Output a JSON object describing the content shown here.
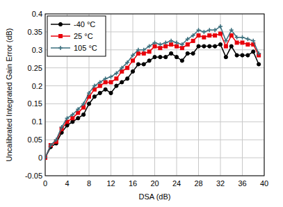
{
  "chart_data": {
    "type": "line",
    "x_label": "DSA (dB)",
    "y_label": "Uncalibrated Integrated Gain Error (dB)",
    "x": [
      0,
      1,
      2,
      3,
      4,
      5,
      6,
      7,
      8,
      9,
      10,
      11,
      12,
      13,
      14,
      15,
      16,
      17,
      18,
      19,
      20,
      21,
      22,
      23,
      24,
      25,
      26,
      27,
      28,
      29,
      30,
      31,
      32,
      33,
      34,
      35,
      36,
      37,
      38,
      39
    ],
    "series": [
      {
        "name": "-40 °C",
        "color": "#000000",
        "marker": "circle",
        "values": [
          0,
          0.03,
          0.04,
          0.07,
          0.09,
          0.1,
          0.11,
          0.12,
          0.15,
          0.17,
          0.18,
          0.19,
          0.18,
          0.2,
          0.21,
          0.22,
          0.24,
          0.26,
          0.26,
          0.27,
          0.28,
          0.28,
          0.28,
          0.29,
          0.28,
          0.27,
          0.29,
          0.29,
          0.31,
          0.31,
          0.31,
          0.31,
          0.315,
          0.28,
          0.31,
          0.285,
          0.285,
          0.285,
          0.295,
          0.26
        ]
      },
      {
        "name": "25 °C",
        "color": "#e8000b",
        "marker": "square",
        "values": [
          0,
          0.035,
          0.045,
          0.08,
          0.1,
          0.11,
          0.125,
          0.14,
          0.17,
          0.19,
          0.2,
          0.21,
          0.21,
          0.22,
          0.24,
          0.25,
          0.27,
          0.29,
          0.29,
          0.295,
          0.31,
          0.305,
          0.31,
          0.315,
          0.31,
          0.305,
          0.315,
          0.325,
          0.34,
          0.335,
          0.34,
          0.34,
          0.345,
          0.31,
          0.34,
          0.32,
          0.32,
          0.315,
          0.315,
          0.285
        ]
      },
      {
        "name": "105 °C",
        "color": "#3a6e7c",
        "marker": "plus",
        "values": [
          0,
          0.035,
          0.05,
          0.085,
          0.11,
          0.12,
          0.135,
          0.15,
          0.18,
          0.2,
          0.21,
          0.22,
          0.225,
          0.235,
          0.25,
          0.265,
          0.285,
          0.3,
          0.3,
          0.31,
          0.32,
          0.315,
          0.32,
          0.325,
          0.32,
          0.315,
          0.33,
          0.34,
          0.355,
          0.35,
          0.355,
          0.355,
          0.365,
          0.325,
          0.355,
          0.335,
          0.335,
          0.33,
          0.325,
          0.29
        ]
      }
    ],
    "xlim": [
      0,
      40
    ],
    "ylim": [
      -0.05,
      0.4
    ],
    "xticks": [
      0,
      4,
      8,
      12,
      16,
      20,
      24,
      28,
      32,
      36,
      40
    ],
    "yticks": [
      -0.05,
      0,
      0.05,
      0.1,
      0.15,
      0.2,
      0.25,
      0.3,
      0.35,
      0.4
    ],
    "grid": true,
    "legend": "upper left"
  }
}
